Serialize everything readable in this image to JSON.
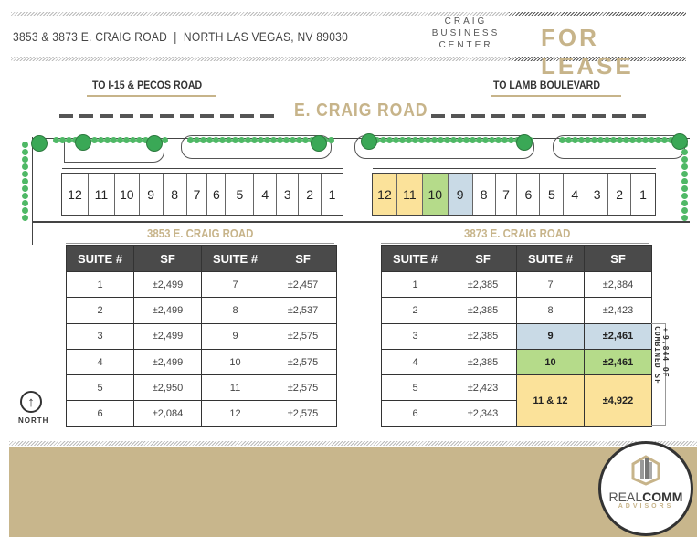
{
  "header": {
    "address": "3853 & 3873 E. CRAIG ROAD  |  NORTH LAS VEGAS, NV 89030",
    "center_name": [
      "CRAIG",
      "BUSINESS",
      "CENTER"
    ],
    "status": "FOR LEASE"
  },
  "map": {
    "left_direction": "TO I-15 & PECOS ROAD",
    "right_direction": "TO LAMB BOULEVARD",
    "road": "E. CRAIG ROAD",
    "building_left": {
      "name": "3853 E. CRAIG ROAD",
      "units": [
        "12",
        "11",
        "10",
        "9",
        "8",
        "7",
        "6",
        "5",
        "4",
        "3",
        "2",
        "1"
      ]
    },
    "building_right": {
      "name": "3873 E. CRAIG ROAD",
      "units": [
        "12",
        "11",
        "10",
        "9",
        "8",
        "7",
        "6",
        "5",
        "4",
        "3",
        "2",
        "1"
      ],
      "highlight": {
        "12": "#fbe29a",
        "11": "#fbe29a",
        "10": "#b5db8a",
        "9": "#c9dae6"
      }
    },
    "north": "NORTH"
  },
  "table_left": {
    "headers": [
      "SUITE #",
      "SF",
      "SUITE #",
      "SF"
    ],
    "rows": [
      [
        "1",
        "±2,499",
        "7",
        "±2,457"
      ],
      [
        "2",
        "±2,499",
        "8",
        "±2,537"
      ],
      [
        "3",
        "±2,499",
        "9",
        "±2,575"
      ],
      [
        "4",
        "±2,499",
        "10",
        "±2,575"
      ],
      [
        "5",
        "±2,950",
        "11",
        "±2,575"
      ],
      [
        "6",
        "±2,084",
        "12",
        "±2,575"
      ]
    ]
  },
  "table_right": {
    "headers": [
      "SUITE #",
      "SF",
      "SUITE #",
      "SF"
    ],
    "rows": [
      [
        "1",
        "±2,385",
        "7",
        "±2,384"
      ],
      [
        "2",
        "±2,385",
        "8",
        "±2,423"
      ],
      [
        "3",
        "±2,385",
        "9",
        "±2,461"
      ],
      [
        "4",
        "±2,385",
        "10",
        "±2,461"
      ],
      [
        "5",
        "±2,423",
        "11 & 12",
        "±4,922"
      ],
      [
        "6",
        "±2,343"
      ]
    ],
    "combined_note": "±9,844 OF COMBINED SF"
  },
  "logo": {
    "name_a": "REAL",
    "name_b": "COMM",
    "sub": "ADVISORS"
  },
  "colors": {
    "accent": "#c7b48a",
    "available_blue": "#c9dae6",
    "available_green": "#b5db8a",
    "available_yellow": "#fbe29a"
  }
}
